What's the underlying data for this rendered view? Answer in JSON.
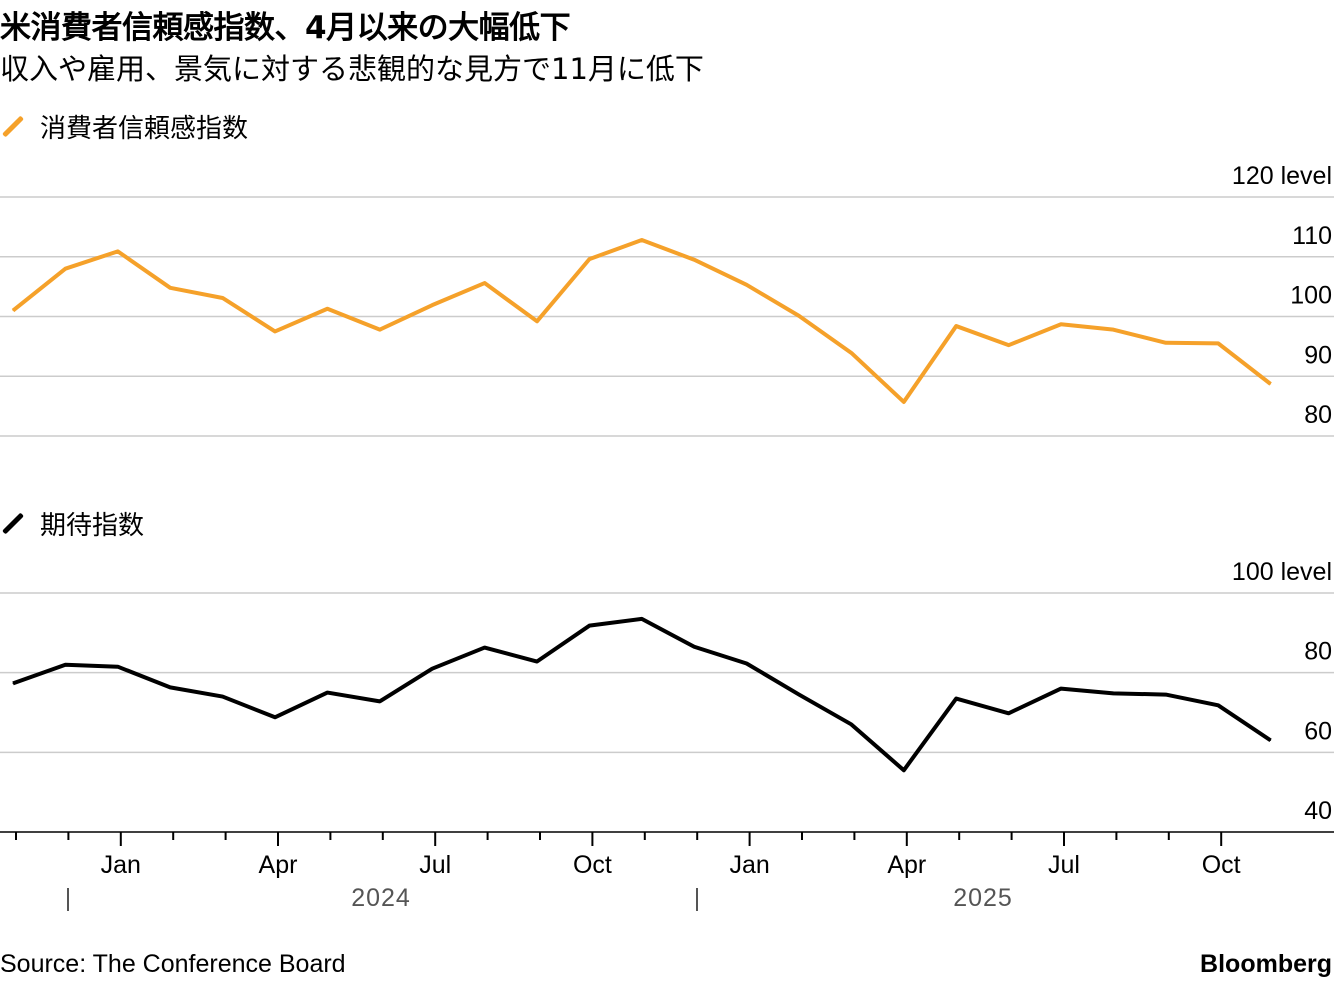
{
  "title": "米消費者信頼感指数、4月以来の大幅低下",
  "subtitle": "収入や雇用、景気に対する悲観的な見方で11月に低下",
  "source": "Source: The Conference Board",
  "brand": "Bloomberg",
  "chart_data": [
    {
      "type": "line",
      "legend": "消費者信頼感指数",
      "color": "#f5a12a",
      "unit_label": "120 level",
      "ylim": [
        80,
        120
      ],
      "yticks": [
        120,
        110,
        100,
        90,
        80
      ],
      "x": [
        "2023-11",
        "2023-12",
        "2024-01",
        "2024-02",
        "2024-03",
        "2024-04",
        "2024-05",
        "2024-06",
        "2024-07",
        "2024-08",
        "2024-09",
        "2024-10",
        "2024-11",
        "2024-12",
        "2025-01",
        "2025-02",
        "2025-03",
        "2025-04",
        "2025-05",
        "2025-06",
        "2025-07",
        "2025-08",
        "2025-09",
        "2025-10",
        "2025-11"
      ],
      "values": [
        101.0,
        108.0,
        110.9,
        104.8,
        103.1,
        97.5,
        101.3,
        97.8,
        101.9,
        105.6,
        99.2,
        109.6,
        112.8,
        109.5,
        105.3,
        100.1,
        93.9,
        85.7,
        98.4,
        95.2,
        98.7,
        97.8,
        95.6,
        95.5,
        88.7
      ]
    },
    {
      "type": "line",
      "legend": "期待指数",
      "color": "#000000",
      "unit_label": "100 level",
      "ylim": [
        40,
        100
      ],
      "yticks": [
        100,
        80,
        60,
        40
      ],
      "x": [
        "2023-11",
        "2023-12",
        "2024-01",
        "2024-02",
        "2024-03",
        "2024-04",
        "2024-05",
        "2024-06",
        "2024-07",
        "2024-08",
        "2024-09",
        "2024-10",
        "2024-11",
        "2024-12",
        "2025-01",
        "2025-02",
        "2025-03",
        "2025-04",
        "2025-05",
        "2025-06",
        "2025-07",
        "2025-08",
        "2025-09",
        "2025-10",
        "2025-11"
      ],
      "values": [
        77.3,
        82.0,
        81.5,
        76.3,
        74.0,
        68.8,
        75.0,
        72.8,
        81.0,
        86.3,
        82.8,
        91.8,
        93.5,
        86.5,
        82.3,
        74.5,
        67.0,
        55.5,
        73.5,
        69.8,
        76.0,
        74.8,
        74.5,
        71.8,
        63.0
      ]
    }
  ],
  "x_axis": {
    "month_labels": [
      {
        "label": "Jan",
        "month": "2024-01"
      },
      {
        "label": "Apr",
        "month": "2024-04"
      },
      {
        "label": "Jul",
        "month": "2024-07"
      },
      {
        "label": "Oct",
        "month": "2024-10"
      },
      {
        "label": "Jan",
        "month": "2025-01"
      },
      {
        "label": "Apr",
        "month": "2025-04"
      },
      {
        "label": "Jul",
        "month": "2025-07"
      },
      {
        "label": "Oct",
        "month": "2025-10"
      }
    ],
    "years": [
      {
        "label": "2024",
        "month": "2024-07"
      },
      {
        "label": "2025",
        "month": "2025-07"
      }
    ]
  }
}
